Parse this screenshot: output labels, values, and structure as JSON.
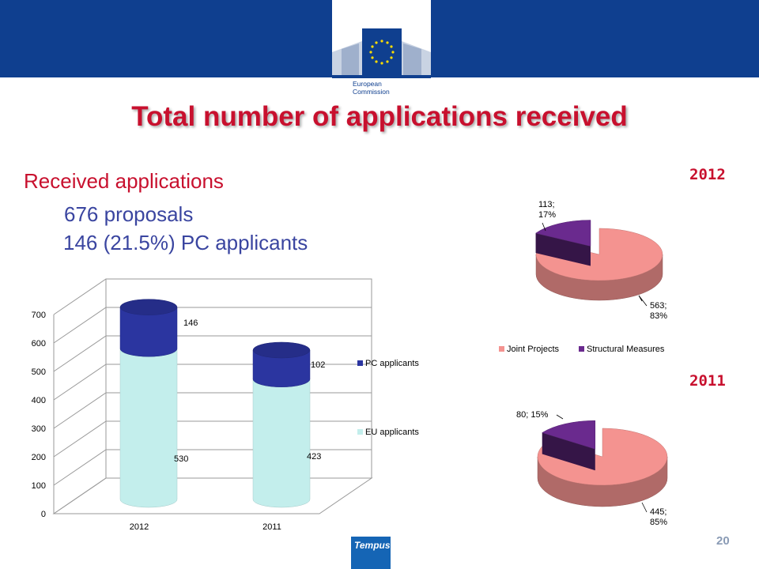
{
  "slide": {
    "title": "Total number of applications received",
    "line1": "Received applications",
    "line2": "676 proposals",
    "line3": "146 (21.5%) PC applicants",
    "page_number": "20",
    "logo_text": [
      "European",
      "Commission"
    ],
    "footer_logo_text": "Tempus",
    "colors": {
      "band": "#0f3f8f",
      "title": "#c8102e",
      "text_blue": "#3a45a0"
    }
  },
  "chart_data": [
    {
      "type": "bar",
      "stacked": true,
      "categories": [
        "2012",
        "2011"
      ],
      "series": [
        {
          "name": "EU applicants",
          "values": [
            530,
            423
          ],
          "color": "#c3eeec"
        },
        {
          "name": "PC applicants",
          "values": [
            146,
            102
          ],
          "color": "#2b35a0"
        }
      ],
      "ylim": [
        0,
        700
      ],
      "yticks": [
        "0",
        "100",
        "200",
        "300",
        "400",
        "500",
        "600",
        "700"
      ],
      "grid": true,
      "legend": "right",
      "data_labels": [
        "530",
        "146",
        "423",
        "102"
      ]
    },
    {
      "type": "pie",
      "title": "2012",
      "labels": [
        "Joint Projects",
        "Structural Measures"
      ],
      "values": [
        563,
        113
      ],
      "percents": [
        83,
        17
      ],
      "slice_labels": [
        [
          "563;",
          "83%"
        ],
        [
          "113;",
          "17%"
        ]
      ],
      "colors": [
        "#f49390",
        "#6a2a8e"
      ],
      "legend": "bottom",
      "legend_items": [
        "Joint Projects",
        "Structural Measures"
      ]
    },
    {
      "type": "pie",
      "title": "2011",
      "labels": [
        "Joint Projects",
        "Structural Measures"
      ],
      "values": [
        445,
        80
      ],
      "percents": [
        85,
        15
      ],
      "slice_labels": [
        [
          "445;",
          "85%"
        ],
        [
          "80; 15%"
        ]
      ],
      "colors": [
        "#f49390",
        "#6a2a8e"
      ]
    }
  ]
}
